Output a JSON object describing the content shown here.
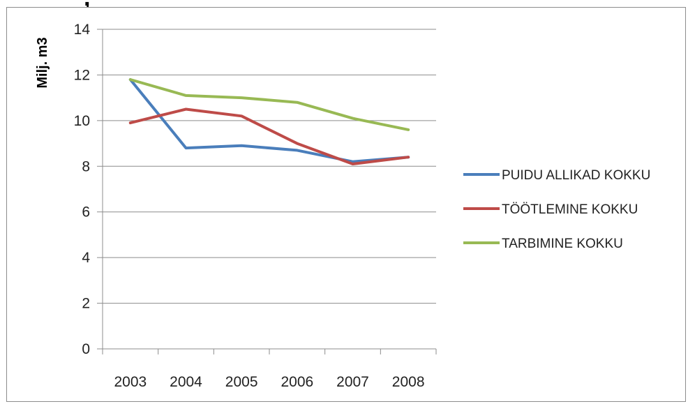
{
  "header": {
    "title_fragment": ", "
  },
  "chart_data": {
    "type": "line",
    "title": "",
    "xlabel": "",
    "ylabel": "Milj. m3",
    "ylim": [
      0,
      14
    ],
    "yticks": [
      0,
      2,
      4,
      6,
      8,
      10,
      12,
      14
    ],
    "grid": true,
    "legend_position": "right",
    "categories": [
      "2003",
      "2004",
      "2005",
      "2006",
      "2007",
      "2008"
    ],
    "series": [
      {
        "name": "PUIDU ALLIKAD KOKKU",
        "color": "#4a7ebb",
        "values": [
          11.8,
          8.8,
          8.9,
          8.7,
          8.2,
          8.4
        ]
      },
      {
        "name": "TÖÖTLEMINE KOKKU",
        "color": "#be4b48",
        "values": [
          9.9,
          10.5,
          10.2,
          9.0,
          8.1,
          8.4
        ]
      },
      {
        "name": "TARBIMINE KOKKU",
        "color": "#98b954",
        "values": [
          11.8,
          11.1,
          11.0,
          10.8,
          10.1,
          9.6
        ]
      }
    ]
  }
}
